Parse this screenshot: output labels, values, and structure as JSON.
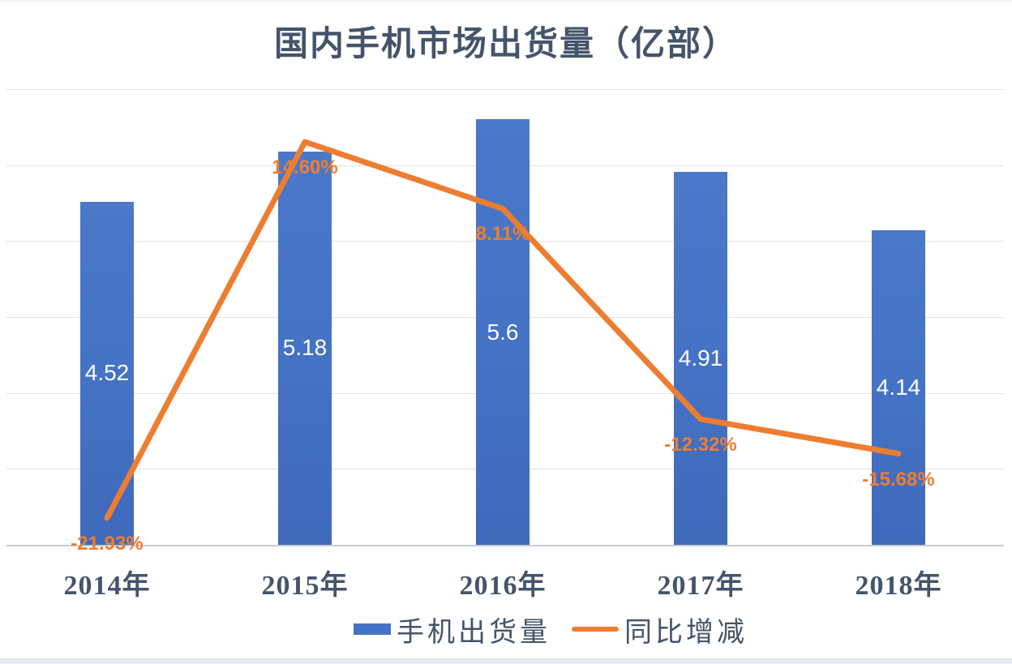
{
  "chart_data": {
    "type": "bar+line",
    "title": "国内手机市场出货量（亿部）",
    "categories": [
      "2014年",
      "2015年",
      "2016年",
      "2017年",
      "2018年"
    ],
    "series": [
      {
        "name": "手机出货量",
        "type": "bar",
        "values": [
          4.52,
          5.18,
          5.6,
          4.91,
          4.14
        ],
        "labels": [
          "4.52",
          "5.18",
          "5.6",
          "4.91",
          "4.14"
        ],
        "label_position": "inside-center",
        "color": "#4472C4"
      },
      {
        "name": "同比增减",
        "type": "line",
        "values": [
          -21.93,
          14.6,
          8.11,
          -12.32,
          -15.68
        ],
        "labels": [
          "-21.93%",
          "14.60%",
          "8.11%",
          "-12.32%",
          "-15.68%"
        ],
        "label_position": "below-point",
        "color": "#ED7D31"
      }
    ],
    "primary_axis": {
      "min": 0,
      "max": 6,
      "step": 1,
      "tick_labels_visible": false
    },
    "secondary_axis": {
      "tick_labels_visible": false
    },
    "grid": true,
    "legend_position": "bottom"
  },
  "colors": {
    "bar": "#4472C4",
    "line": "#ED7D31",
    "title_text": "#44546A",
    "axis_text": "#44546A",
    "bar_label_text": "#FFFFFF",
    "pct_label_text": "#ED7D31",
    "gridline": "#e2e2e2"
  }
}
